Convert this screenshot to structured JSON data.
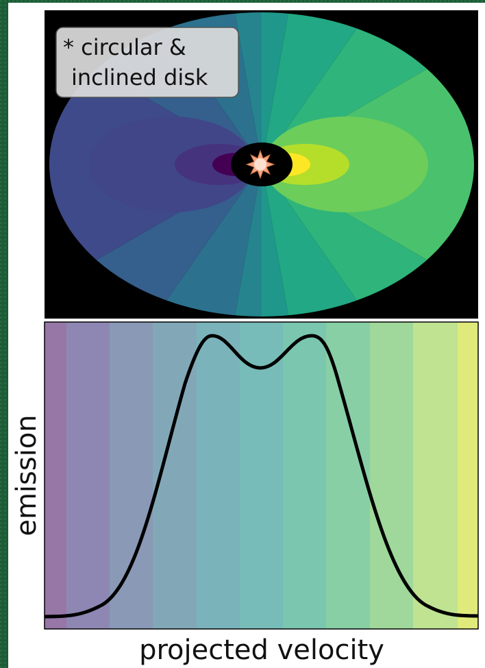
{
  "legend": {
    "lines": [
      "* circular &",
      "inclined disk"
    ]
  },
  "y_label": "emission",
  "x_label": "projected velocity"
}
